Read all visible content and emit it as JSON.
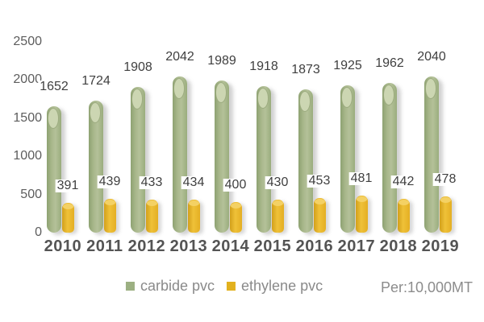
{
  "chart_data": {
    "type": "bar",
    "title": "",
    "categories": [
      "2010",
      "2011",
      "2012",
      "2013",
      "2014",
      "2015",
      "2016",
      "2017",
      "2018",
      "2019"
    ],
    "series": [
      {
        "name": "carbide pvc",
        "color": "#a3b386",
        "values": [
          1652,
          1724,
          1908,
          2042,
          1989,
          1918,
          1873,
          1925,
          1962,
          2040
        ]
      },
      {
        "name": "ethylene pvc",
        "color": "#e8b822",
        "values": [
          391,
          439,
          433,
          434,
          400,
          430,
          453,
          481,
          442,
          478
        ]
      }
    ],
    "y_ticks": [
      0,
      500,
      1000,
      1500,
      2000,
      2500
    ],
    "ylim": [
      0,
      2500
    ],
    "grid": false,
    "legend_position": "bottom",
    "unit_note": "Per:10,000MT"
  }
}
